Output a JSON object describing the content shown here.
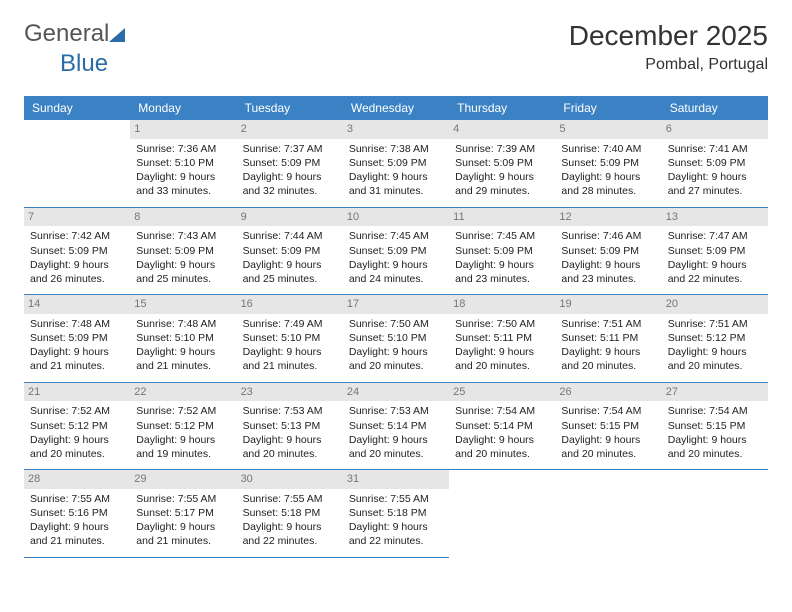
{
  "logo": {
    "text1": "General",
    "text2": "Blue"
  },
  "title": "December 2025",
  "location": "Pombal, Portugal",
  "colors": {
    "header_bg": "#3b82c4",
    "header_text": "#ffffff",
    "daynum_bg": "#e6e6e6",
    "daynum_text": "#777777",
    "border": "#3b82c4",
    "text": "#222222",
    "logo_gray": "#555555",
    "logo_blue": "#2a6ca8"
  },
  "fonts": {
    "title_size": 28,
    "location_size": 16,
    "head_size": 12,
    "cell_size": 10.5
  },
  "weekdays": [
    "Sunday",
    "Monday",
    "Tuesday",
    "Wednesday",
    "Thursday",
    "Friday",
    "Saturday"
  ],
  "month_start_weekday": 1,
  "days_in_month": 31,
  "days": {
    "1": {
      "sunrise": "7:36 AM",
      "sunset": "5:10 PM",
      "daylight": "9 hours and 33 minutes."
    },
    "2": {
      "sunrise": "7:37 AM",
      "sunset": "5:09 PM",
      "daylight": "9 hours and 32 minutes."
    },
    "3": {
      "sunrise": "7:38 AM",
      "sunset": "5:09 PM",
      "daylight": "9 hours and 31 minutes."
    },
    "4": {
      "sunrise": "7:39 AM",
      "sunset": "5:09 PM",
      "daylight": "9 hours and 29 minutes."
    },
    "5": {
      "sunrise": "7:40 AM",
      "sunset": "5:09 PM",
      "daylight": "9 hours and 28 minutes."
    },
    "6": {
      "sunrise": "7:41 AM",
      "sunset": "5:09 PM",
      "daylight": "9 hours and 27 minutes."
    },
    "7": {
      "sunrise": "7:42 AM",
      "sunset": "5:09 PM",
      "daylight": "9 hours and 26 minutes."
    },
    "8": {
      "sunrise": "7:43 AM",
      "sunset": "5:09 PM",
      "daylight": "9 hours and 25 minutes."
    },
    "9": {
      "sunrise": "7:44 AM",
      "sunset": "5:09 PM",
      "daylight": "9 hours and 25 minutes."
    },
    "10": {
      "sunrise": "7:45 AM",
      "sunset": "5:09 PM",
      "daylight": "9 hours and 24 minutes."
    },
    "11": {
      "sunrise": "7:45 AM",
      "sunset": "5:09 PM",
      "daylight": "9 hours and 23 minutes."
    },
    "12": {
      "sunrise": "7:46 AM",
      "sunset": "5:09 PM",
      "daylight": "9 hours and 23 minutes."
    },
    "13": {
      "sunrise": "7:47 AM",
      "sunset": "5:09 PM",
      "daylight": "9 hours and 22 minutes."
    },
    "14": {
      "sunrise": "7:48 AM",
      "sunset": "5:09 PM",
      "daylight": "9 hours and 21 minutes."
    },
    "15": {
      "sunrise": "7:48 AM",
      "sunset": "5:10 PM",
      "daylight": "9 hours and 21 minutes."
    },
    "16": {
      "sunrise": "7:49 AM",
      "sunset": "5:10 PM",
      "daylight": "9 hours and 21 minutes."
    },
    "17": {
      "sunrise": "7:50 AM",
      "sunset": "5:10 PM",
      "daylight": "9 hours and 20 minutes."
    },
    "18": {
      "sunrise": "7:50 AM",
      "sunset": "5:11 PM",
      "daylight": "9 hours and 20 minutes."
    },
    "19": {
      "sunrise": "7:51 AM",
      "sunset": "5:11 PM",
      "daylight": "9 hours and 20 minutes."
    },
    "20": {
      "sunrise": "7:51 AM",
      "sunset": "5:12 PM",
      "daylight": "9 hours and 20 minutes."
    },
    "21": {
      "sunrise": "7:52 AM",
      "sunset": "5:12 PM",
      "daylight": "9 hours and 20 minutes."
    },
    "22": {
      "sunrise": "7:52 AM",
      "sunset": "5:12 PM",
      "daylight": "9 hours and 19 minutes."
    },
    "23": {
      "sunrise": "7:53 AM",
      "sunset": "5:13 PM",
      "daylight": "9 hours and 20 minutes."
    },
    "24": {
      "sunrise": "7:53 AM",
      "sunset": "5:14 PM",
      "daylight": "9 hours and 20 minutes."
    },
    "25": {
      "sunrise": "7:54 AM",
      "sunset": "5:14 PM",
      "daylight": "9 hours and 20 minutes."
    },
    "26": {
      "sunrise": "7:54 AM",
      "sunset": "5:15 PM",
      "daylight": "9 hours and 20 minutes."
    },
    "27": {
      "sunrise": "7:54 AM",
      "sunset": "5:15 PM",
      "daylight": "9 hours and 20 minutes."
    },
    "28": {
      "sunrise": "7:55 AM",
      "sunset": "5:16 PM",
      "daylight": "9 hours and 21 minutes."
    },
    "29": {
      "sunrise": "7:55 AM",
      "sunset": "5:17 PM",
      "daylight": "9 hours and 21 minutes."
    },
    "30": {
      "sunrise": "7:55 AM",
      "sunset": "5:18 PM",
      "daylight": "9 hours and 22 minutes."
    },
    "31": {
      "sunrise": "7:55 AM",
      "sunset": "5:18 PM",
      "daylight": "9 hours and 22 minutes."
    }
  },
  "labels": {
    "sunrise": "Sunrise: ",
    "sunset": "Sunset: ",
    "daylight": "Daylight: "
  }
}
